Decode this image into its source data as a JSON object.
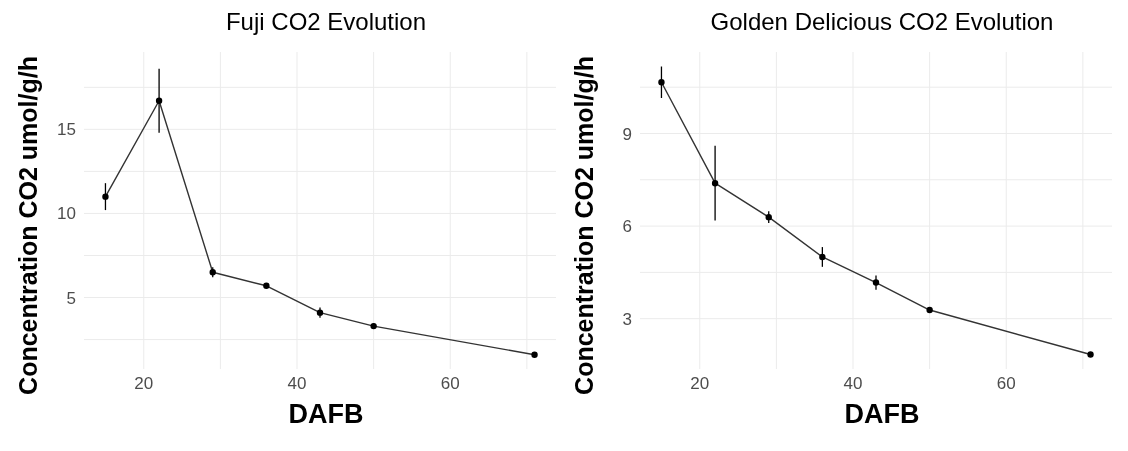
{
  "chart_data": [
    {
      "type": "line",
      "title": "Fuji CO2 Evolution",
      "xlabel": "DAFB",
      "ylabel": "Concentration CO2 umol/g/h",
      "x": [
        15,
        22,
        29,
        36,
        43,
        50,
        71
      ],
      "series": [
        {
          "color": "#333333",
          "values": [
            11.0,
            16.7,
            6.5,
            5.7,
            4.1,
            3.3,
            1.6
          ],
          "errors": [
            0.8,
            1.9,
            0.3,
            null,
            0.3,
            null,
            null
          ]
        }
      ],
      "xlim": [
        12.2,
        73.8
      ],
      "xticks": [
        20,
        {
          "value": 30,
          "label": null
        },
        40,
        {
          "value": 50,
          "label": null
        },
        60,
        {
          "value": 70,
          "label": null
        }
      ],
      "ylim": [
        0.75,
        19.6
      ],
      "yticks": [
        {
          "value": 2.5,
          "label": null
        },
        5,
        {
          "value": 7.5,
          "label": null
        },
        10,
        {
          "value": 12.5,
          "label": null
        },
        15,
        {
          "value": 17.5,
          "label": null
        }
      ],
      "grid": true,
      "legend": false,
      "marker": "circle",
      "line_style": "solid"
    },
    {
      "type": "line",
      "title": "Golden Delicious CO2 Evolution",
      "xlabel": "DAFB",
      "ylabel": "Concentration CO2 umol/g/h",
      "x": [
        15,
        22,
        29,
        36,
        43,
        50,
        71
      ],
      "series": [
        {
          "color": "#333333",
          "values": [
            10.66,
            7.39,
            6.29,
            5.0,
            4.17,
            3.28,
            1.84
          ],
          "errors": [
            0.51,
            1.21,
            0.19,
            0.32,
            0.23,
            null,
            null
          ]
        }
      ],
      "xlim": [
        12.2,
        73.8
      ],
      "xticks": [
        20,
        {
          "value": 30,
          "label": null
        },
        40,
        {
          "value": 50,
          "label": null
        },
        60,
        {
          "value": 70,
          "label": null
        }
      ],
      "ylim": [
        1.37,
        11.64
      ],
      "yticks": [
        3,
        {
          "value": 4.5,
          "label": null
        },
        6,
        {
          "value": 7.5,
          "label": null
        },
        9,
        {
          "value": 10.5,
          "label": null
        }
      ],
      "grid": true,
      "legend": false,
      "marker": "circle",
      "line_style": "solid"
    }
  ]
}
